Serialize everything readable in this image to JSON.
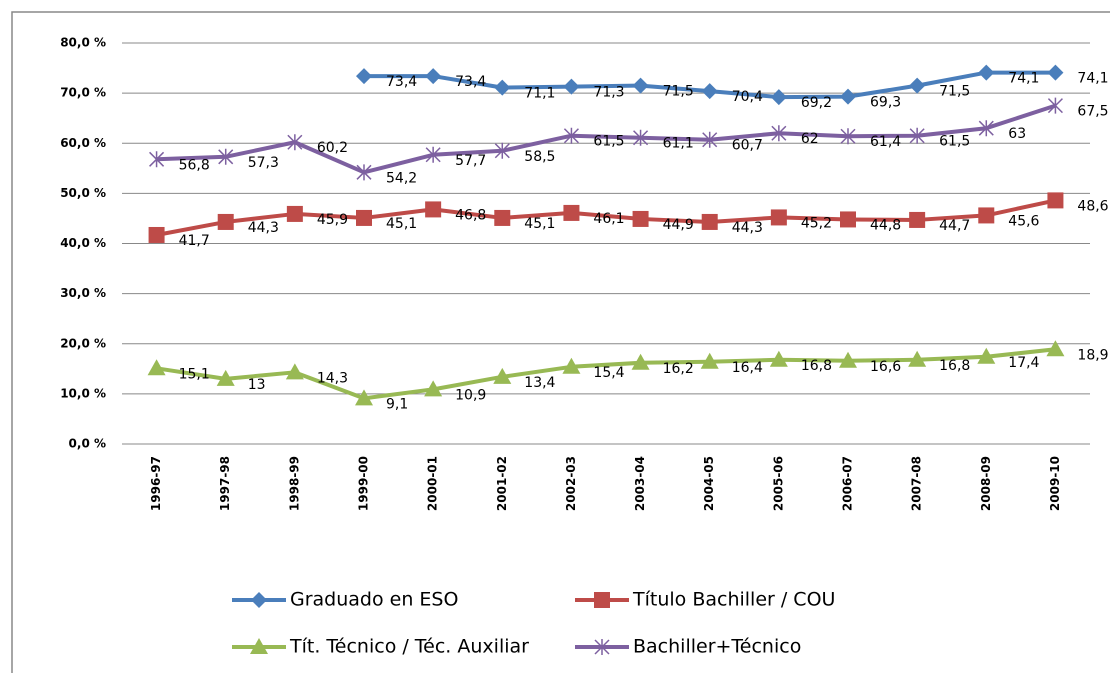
{
  "chart_data": {
    "type": "line",
    "categories": [
      "1996-97",
      "1997-98",
      "1998-99",
      "1999-00",
      "2000-01",
      "2001-02",
      "2002-03",
      "2003-04",
      "2004-05",
      "2005-06",
      "2006-07",
      "2007-08",
      "2008-09",
      "2009-10"
    ],
    "ylim": [
      0,
      80
    ],
    "yticks": [
      {
        "value": 0,
        "label": "0,0 %"
      },
      {
        "value": 10,
        "label": "10,0 %"
      },
      {
        "value": 20,
        "label": "20,0 %"
      },
      {
        "value": 30,
        "label": "30,0 %"
      },
      {
        "value": 40,
        "label": "40,0 %"
      },
      {
        "value": 50,
        "label": "50,0 %"
      },
      {
        "value": 60,
        "label": "60,0 %"
      },
      {
        "value": 70,
        "label": "70,0 %"
      },
      {
        "value": 80,
        "label": "80,0 %"
      }
    ],
    "grid": true,
    "legend": "bottom",
    "series": [
      {
        "name": "Graduado en ESO",
        "color": "#4a7ebb",
        "marker": "diamond",
        "values": [
          null,
          null,
          null,
          73.4,
          73.4,
          71.1,
          71.3,
          71.5,
          70.4,
          69.2,
          69.3,
          71.5,
          74.1,
          74.1
        ],
        "value_labels": [
          null,
          null,
          null,
          "73,4",
          "73,4",
          "71,1",
          "71,3",
          "71,5",
          "70,4",
          "69,2",
          "69,3",
          "71,5",
          "74,1",
          "74,1"
        ]
      },
      {
        "name": "Título Bachiller / COU",
        "color": "#be4b48",
        "marker": "square",
        "values": [
          41.7,
          44.3,
          45.9,
          45.1,
          46.8,
          45.1,
          46.1,
          44.9,
          44.3,
          45.2,
          44.8,
          44.7,
          45.6,
          48.6
        ],
        "value_labels": [
          "41,7",
          "44,3",
          "45,9",
          "45,1",
          "46,8",
          "45,1",
          "46,1",
          "44,9",
          "44,3",
          "45,2",
          "44,8",
          "44,7",
          "45,6",
          "48,6"
        ]
      },
      {
        "name": "Tít. Técnico / Téc. Auxiliar",
        "color": "#98b954",
        "marker": "triangle",
        "values": [
          15.1,
          13,
          14.3,
          9.1,
          10.9,
          13.4,
          15.4,
          16.2,
          16.4,
          16.8,
          16.6,
          16.8,
          17.4,
          18.9
        ],
        "value_labels": [
          "15,1",
          "13",
          "14,3",
          "9,1",
          "10,9",
          "13,4",
          "15,4",
          "16,2",
          "16,4",
          "16,8",
          "16,6",
          "16,8",
          "17,4",
          "18,9"
        ]
      },
      {
        "name": "Bachiller+Técnico",
        "color": "#7d60a0",
        "marker": "cross",
        "values": [
          56.8,
          57.3,
          60.2,
          54.2,
          57.7,
          58.5,
          61.5,
          61.1,
          60.7,
          62,
          61.4,
          61.5,
          63,
          67.5
        ],
        "value_labels": [
          "56,8",
          "57,3",
          "60,2",
          "54,2",
          "57,7",
          "58,5",
          "61,5",
          "61,1",
          "60,7",
          "62",
          "61,4",
          "61,5",
          "63",
          "67,5"
        ]
      }
    ]
  }
}
